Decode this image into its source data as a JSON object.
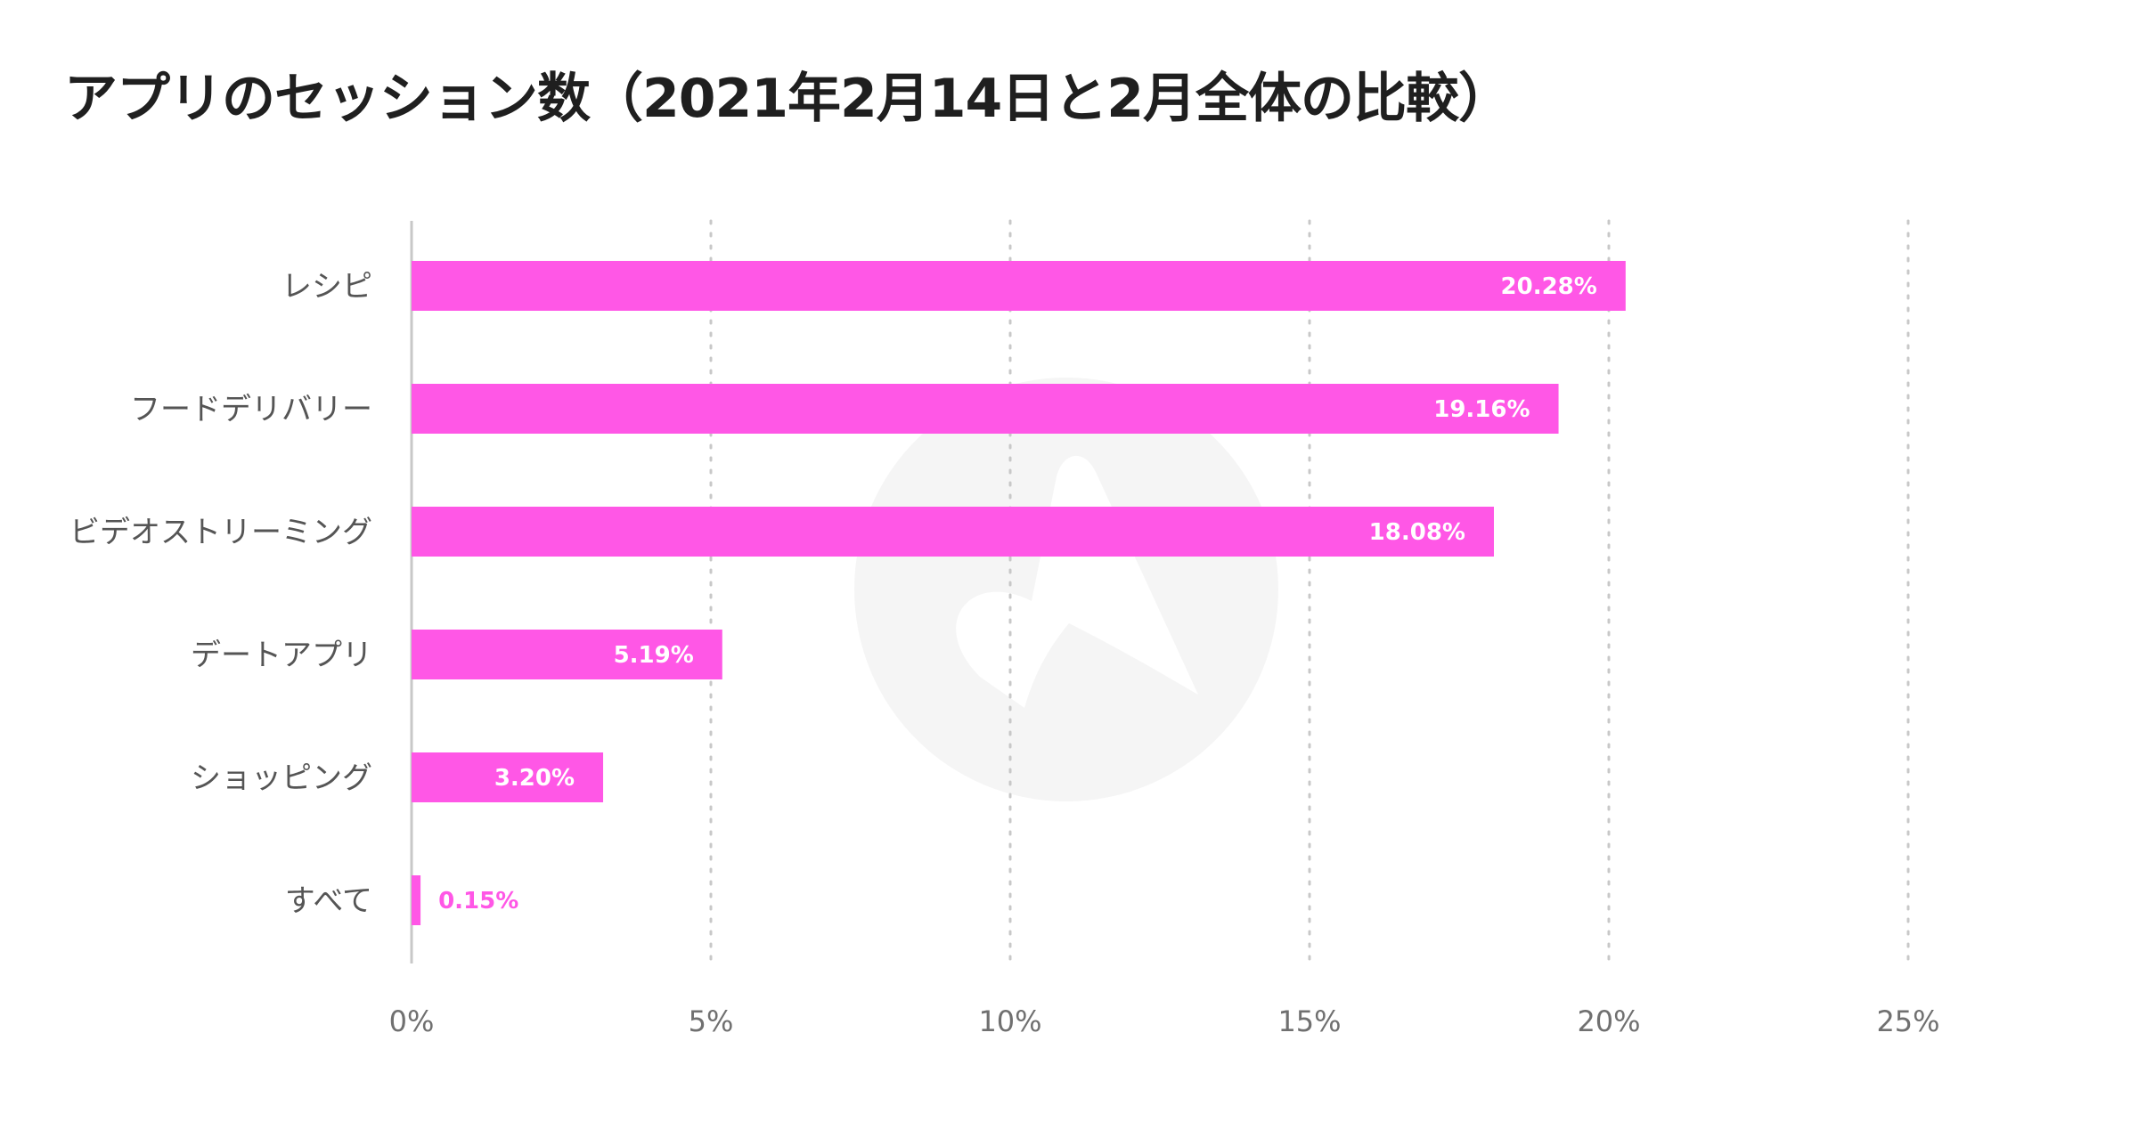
{
  "chart_data": {
    "type": "bar",
    "orientation": "horizontal",
    "title": "アプリのセッション数（2021年2月14日と2月全体の比較）",
    "categories": [
      "レシピ",
      "フードデリバリー",
      "ビデオストリーミング",
      "デートアプリ",
      "ショッピング",
      "すべて"
    ],
    "values": [
      20.28,
      19.16,
      18.08,
      5.19,
      3.2,
      0.15
    ],
    "value_labels": [
      "20.28%",
      "19.16%",
      "18.08%",
      "5.19%",
      "3.20%",
      "0.15%"
    ],
    "x_ticks": [
      0,
      5,
      10,
      15,
      20,
      25
    ],
    "x_tick_labels": [
      "0%",
      "5%",
      "10%",
      "15%",
      "20%",
      "25%"
    ],
    "xlim": [
      0,
      25
    ],
    "xlabel": "",
    "ylabel": "",
    "grid": "vertical dotted",
    "legend": "none",
    "bar_color": "#ff57e6",
    "inside_label_color": "#ffffff",
    "outside_label_color": "#ff57e6",
    "gridline_color": "#c8c8c8",
    "axis_color": "#c8c8c8",
    "watermark_color": "#f5f5f5"
  }
}
